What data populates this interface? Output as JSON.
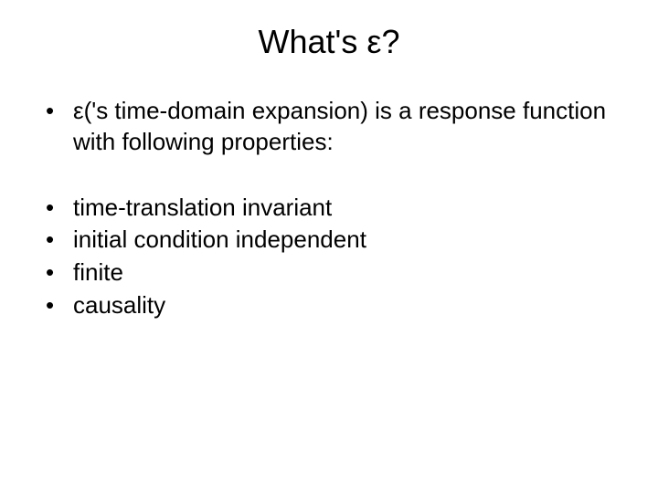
{
  "slide": {
    "title": "What's ε?",
    "intro": "ε('s time-domain expansion) is a response function with following properties:",
    "items": [
      "time-translation invariant",
      "initial condition independent",
      "finite",
      "causality"
    ]
  },
  "styling": {
    "background_color": "#ffffff",
    "text_color": "#000000",
    "title_fontsize": 36,
    "body_fontsize": 26,
    "font_family": "Arial"
  }
}
